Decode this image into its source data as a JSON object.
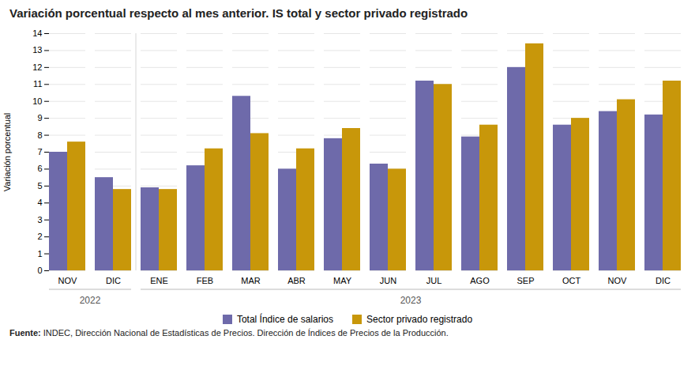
{
  "chart_data": {
    "type": "bar",
    "title": "Variación porcentual respecto al mes anterior. IS total y sector privado registrado",
    "ylabel": "Variación porcentual",
    "categories": [
      "NOV",
      "DIC",
      "ENE",
      "FEB",
      "MAR",
      "ABR",
      "MAY",
      "JUN",
      "JUL",
      "AGO",
      "SEP",
      "OCT",
      "NOV",
      "DIC"
    ],
    "years": [
      "2022",
      "2022",
      "2023",
      "2023",
      "2023",
      "2023",
      "2023",
      "2023",
      "2023",
      "2023",
      "2023",
      "2023",
      "2023",
      "2023"
    ],
    "series": [
      {
        "name": "Total Índice de salarios",
        "color": "#6e6aaa",
        "values": [
          7.0,
          5.5,
          4.9,
          6.2,
          10.3,
          6.0,
          7.8,
          6.3,
          11.2,
          7.9,
          12.0,
          8.6,
          9.4,
          9.2
        ]
      },
      {
        "name": "Sector privado registrado",
        "color": "#c8970a",
        "values": [
          7.6,
          4.8,
          4.8,
          7.2,
          8.1,
          7.2,
          8.4,
          6.0,
          11.0,
          8.6,
          13.4,
          9.0,
          10.1,
          11.2
        ]
      }
    ],
    "ylim": [
      0,
      14
    ],
    "yticks": [
      0,
      1,
      2,
      3,
      4,
      5,
      6,
      7,
      8,
      9,
      10,
      11,
      12,
      13,
      14
    ],
    "grid": true,
    "legend": "bottom",
    "source_label": "Fuente:",
    "source": "INDEC, Dirección Nacional de Estadísticas de Precios. Dirección de Índices de Precios de la Producción."
  }
}
